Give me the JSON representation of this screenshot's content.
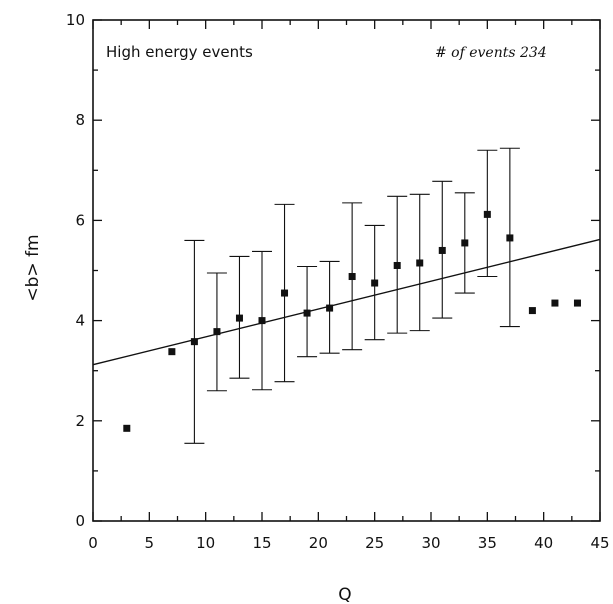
{
  "chart_data": {
    "type": "scatter",
    "title": "",
    "xlabel": "Q",
    "ylabel": "<b> fm",
    "xlim": [
      0,
      45
    ],
    "ylim": [
      0,
      10
    ],
    "x_ticks": [
      "0",
      "5",
      "10",
      "15",
      "20",
      "25",
      "30",
      "35",
      "40",
      "45"
    ],
    "y_ticks": [
      "0",
      "2",
      "4",
      "6",
      "8",
      "10"
    ],
    "grid": false,
    "annotations": {
      "left": "High energy events",
      "right": "# of events 234"
    },
    "points": [
      {
        "x": 3,
        "y": 1.85
      },
      {
        "x": 7,
        "y": 3.38
      },
      {
        "x": 9,
        "y": 3.58,
        "err_low": 1.55,
        "err_high": 5.6
      },
      {
        "x": 11,
        "y": 3.78,
        "err_low": 2.6,
        "err_high": 4.95
      },
      {
        "x": 13,
        "y": 4.05,
        "err_low": 2.85,
        "err_high": 5.28
      },
      {
        "x": 15,
        "y": 4.0,
        "err_low": 2.62,
        "err_high": 5.38
      },
      {
        "x": 17,
        "y": 4.55,
        "err_low": 2.78,
        "err_high": 6.32
      },
      {
        "x": 19,
        "y": 4.15,
        "err_low": 3.28,
        "err_high": 5.08
      },
      {
        "x": 21,
        "y": 4.25,
        "err_low": 3.35,
        "err_high": 5.18
      },
      {
        "x": 23,
        "y": 4.88,
        "err_low": 3.42,
        "err_high": 6.35
      },
      {
        "x": 25,
        "y": 4.75,
        "err_low": 3.62,
        "err_high": 5.9
      },
      {
        "x": 27,
        "y": 5.1,
        "err_low": 3.75,
        "err_high": 6.48
      },
      {
        "x": 29,
        "y": 5.15,
        "err_low": 3.8,
        "err_high": 6.52
      },
      {
        "x": 31,
        "y": 5.4,
        "err_low": 4.05,
        "err_high": 6.78
      },
      {
        "x": 33,
        "y": 5.55,
        "err_low": 4.55,
        "err_high": 6.55
      },
      {
        "x": 35,
        "y": 6.12,
        "err_low": 4.88,
        "err_high": 7.4
      },
      {
        "x": 37,
        "y": 5.65,
        "err_low": 3.88,
        "err_high": 7.44
      },
      {
        "x": 39,
        "y": 4.2
      },
      {
        "x": 41,
        "y": 4.35
      },
      {
        "x": 43,
        "y": 4.35
      }
    ],
    "fit_line": {
      "x": [
        0,
        45
      ],
      "y": [
        3.12,
        5.62
      ]
    }
  }
}
